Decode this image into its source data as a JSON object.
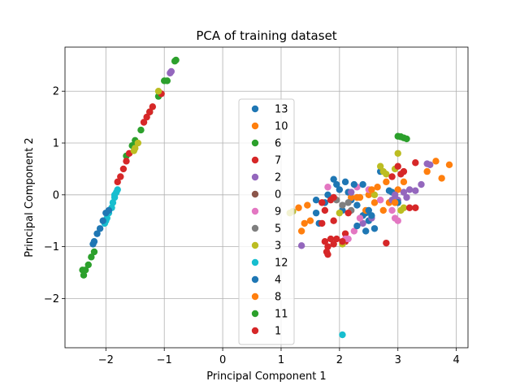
{
  "chart_data": {
    "type": "scatter",
    "title": "PCA of training dataset",
    "xlabel": "Principal Component 1",
    "ylabel": "Principal Component 2",
    "xlim": [
      -2.7,
      4.2
    ],
    "ylim": [
      -2.95,
      2.85
    ],
    "xticks": [
      -2,
      -1,
      0,
      1,
      2,
      3,
      4
    ],
    "yticks": [
      -2,
      -1,
      0,
      1,
      2
    ],
    "grid": true,
    "legend_position": "center",
    "series": [
      {
        "name": "13",
        "color": "#1f77b4",
        "points": [
          [
            1.9,
            0.3
          ],
          [
            1.95,
            0.2
          ],
          [
            2.0,
            0.1
          ],
          [
            2.1,
            0.25
          ],
          [
            2.15,
            0.05
          ],
          [
            1.8,
            0.0
          ],
          [
            1.75,
            -0.15
          ],
          [
            2.2,
            -0.1
          ],
          [
            2.3,
            -0.2
          ],
          [
            2.4,
            -0.4
          ],
          [
            2.5,
            -0.5
          ],
          [
            2.6,
            -0.65
          ],
          [
            1.6,
            -0.1
          ],
          [
            2.05,
            -0.3
          ],
          [
            2.9,
            0.05
          ],
          [
            2.7,
            0.45
          ],
          [
            1.65,
            -0.55
          ],
          [
            2.45,
            -0.35
          ]
        ]
      },
      {
        "name": "10",
        "color": "#ff7f0e",
        "points": [
          [
            2.2,
            -0.05
          ],
          [
            2.35,
            -0.05
          ],
          [
            2.5,
            0.0
          ],
          [
            2.65,
            0.15
          ],
          [
            2.8,
            0.25
          ],
          [
            2.6,
            -0.15
          ],
          [
            2.45,
            -0.3
          ],
          [
            1.4,
            -0.55
          ],
          [
            1.35,
            -0.7
          ],
          [
            1.3,
            -0.25
          ],
          [
            2.85,
            -0.15
          ],
          [
            3.1,
            0.25
          ],
          [
            3.0,
            0.1
          ],
          [
            2.75,
            -0.3
          ]
        ]
      },
      {
        "name": "6",
        "color": "#2ca02c",
        "points": [
          [
            3.05,
            1.12
          ],
          [
            3.1,
            1.1
          ],
          [
            3.15,
            1.08
          ],
          [
            3.0,
            1.13
          ]
        ]
      },
      {
        "name": "7",
        "color": "#d62728",
        "points": [
          [
            1.75,
            -0.9
          ],
          [
            1.8,
            -1.0
          ],
          [
            1.85,
            -0.85
          ],
          [
            1.9,
            -0.95
          ],
          [
            1.95,
            -0.85
          ],
          [
            1.78,
            -1.1
          ],
          [
            1.8,
            -1.15
          ],
          [
            2.1,
            -0.75
          ],
          [
            2.1,
            -0.9
          ],
          [
            1.7,
            -0.55
          ],
          [
            1.9,
            -0.5
          ],
          [
            2.8,
            -0.93
          ],
          [
            1.85,
            -0.1
          ],
          [
            1.75,
            -0.3
          ]
        ]
      },
      {
        "name": "2",
        "color": "#9467bd",
        "points": [
          [
            2.95,
            0.0
          ],
          [
            3.0,
            -0.1
          ],
          [
            3.1,
            0.05
          ],
          [
            3.2,
            0.1
          ],
          [
            3.3,
            0.08
          ],
          [
            2.9,
            -0.1
          ],
          [
            3.4,
            0.2
          ],
          [
            3.5,
            0.6
          ],
          [
            3.55,
            0.58
          ],
          [
            1.35,
            -0.98
          ],
          [
            2.4,
            -0.55
          ],
          [
            2.55,
            -0.45
          ],
          [
            2.2,
            0.05
          ],
          [
            3.15,
            -0.05
          ]
        ]
      },
      {
        "name": "0",
        "color": "#8c564b",
        "points": []
      },
      {
        "name": "9",
        "color": "#e377c2",
        "points": [
          [
            2.3,
            0.15
          ],
          [
            2.5,
            0.1
          ],
          [
            2.1,
            -0.85
          ],
          [
            2.25,
            -0.7
          ],
          [
            2.95,
            -0.45
          ],
          [
            3.0,
            -0.5
          ],
          [
            2.35,
            -0.45
          ],
          [
            2.7,
            -0.1
          ],
          [
            1.8,
            0.15
          ],
          [
            2.9,
            -0.3
          ],
          [
            2.15,
            -0.85
          ]
        ]
      },
      {
        "name": "5",
        "color": "#7f7f7f",
        "points": [
          [
            1.95,
            -0.1
          ],
          [
            2.05,
            -0.2
          ],
          [
            2.15,
            -0.15
          ],
          [
            2.2,
            -0.3
          ]
        ]
      },
      {
        "name": "3",
        "color": "#bcbd22",
        "points": [
          [
            2.7,
            0.55
          ],
          [
            2.75,
            0.45
          ],
          [
            2.8,
            0.4
          ],
          [
            2.95,
            0.5
          ],
          [
            3.0,
            0.8
          ],
          [
            3.05,
            -0.3
          ],
          [
            3.1,
            -0.25
          ],
          [
            2.6,
            0.0
          ],
          [
            2.0,
            -0.35
          ],
          [
            2.05,
            -0.95
          ],
          [
            1.15,
            -0.35
          ],
          [
            1.2,
            -0.32
          ]
        ]
      },
      {
        "name": "12",
        "color": "#17becf",
        "points": [
          [
            2.05,
            -2.7
          ]
        ]
      },
      {
        "name": "4",
        "color": "#1f77b4",
        "points": [
          [
            2.85,
            0.08
          ],
          [
            2.4,
            0.2
          ],
          [
            2.25,
            0.2
          ],
          [
            2.5,
            -0.3
          ],
          [
            2.55,
            -0.4
          ],
          [
            3.0,
            -0.15
          ],
          [
            1.6,
            -0.35
          ],
          [
            2.3,
            -0.6
          ],
          [
            2.45,
            -0.7
          ]
        ]
      },
      {
        "name": "8",
        "color": "#ff7f0e",
        "points": [
          [
            3.5,
            0.45
          ],
          [
            3.65,
            0.65
          ],
          [
            3.75,
            0.32
          ],
          [
            3.88,
            0.58
          ],
          [
            2.95,
            -0.15
          ],
          [
            2.55,
            0.1
          ],
          [
            1.45,
            -0.2
          ],
          [
            1.5,
            -0.5
          ],
          [
            2.3,
            -0.05
          ]
        ]
      },
      {
        "name": "11",
        "color": "#2ca02c",
        "points": [
          [
            -0.8,
            2.6
          ],
          [
            -0.82,
            2.58
          ],
          [
            -0.95,
            2.2
          ],
          [
            -1.0,
            2.2
          ],
          [
            -1.1,
            1.9
          ],
          [
            -1.25,
            1.6
          ],
          [
            -1.4,
            1.25
          ],
          [
            -1.5,
            1.05
          ],
          [
            -1.55,
            0.95
          ],
          [
            -1.65,
            0.75
          ],
          [
            -2.3,
            -1.35
          ],
          [
            -2.35,
            -1.45
          ],
          [
            -2.38,
            -1.55
          ],
          [
            -2.4,
            -1.45
          ],
          [
            -2.25,
            -1.2
          ],
          [
            -2.2,
            -1.1
          ],
          [
            3.05,
            1.12
          ]
        ]
      },
      {
        "name": "1",
        "color": "#d62728",
        "points": [
          [
            -1.05,
            1.95
          ],
          [
            -1.2,
            1.7
          ],
          [
            -1.25,
            1.6
          ],
          [
            -1.3,
            1.5
          ],
          [
            -1.35,
            1.4
          ],
          [
            -1.6,
            0.8
          ],
          [
            -1.65,
            0.65
          ],
          [
            -1.7,
            0.5
          ],
          [
            -1.75,
            0.35
          ],
          [
            -1.8,
            0.25
          ],
          [
            3.05,
            0.4
          ],
          [
            3.1,
            0.45
          ],
          [
            3.3,
            0.62
          ],
          [
            3.2,
            -0.25
          ],
          [
            3.3,
            -0.25
          ],
          [
            2.05,
            -0.9
          ],
          [
            2.15,
            -0.35
          ],
          [
            1.7,
            -0.15
          ],
          [
            1.9,
            -0.05
          ],
          [
            3.0,
            0.55
          ],
          [
            2.9,
            0.35
          ]
        ]
      },
      {
        "name": "12",
        "color": "#17becf",
        "points": [
          [
            -1.8,
            0.1
          ],
          [
            -1.82,
            0.05
          ],
          [
            -1.85,
            -0.05
          ],
          [
            -1.88,
            -0.15
          ],
          [
            -1.9,
            -0.25
          ],
          [
            -1.95,
            -0.35
          ],
          [
            -1.98,
            -0.45
          ],
          [
            -2.0,
            -0.5
          ],
          [
            -2.02,
            -0.55
          ],
          [
            -1.85,
            0.0
          ]
        ],
        "legend": false
      },
      {
        "name": "4",
        "color": "#1f77b4",
        "points": [
          [
            -2.0,
            -0.35
          ],
          [
            -2.05,
            -0.5
          ],
          [
            -2.1,
            -0.65
          ],
          [
            -2.15,
            -0.75
          ],
          [
            -2.2,
            -0.9
          ],
          [
            -2.22,
            -0.95
          ],
          [
            -1.95,
            -0.3
          ]
        ],
        "legend": false
      },
      {
        "name": "3",
        "color": "#bcbd22",
        "points": [
          [
            -1.45,
            1.0
          ],
          [
            -1.5,
            0.9
          ],
          [
            -1.52,
            0.85
          ],
          [
            -1.1,
            2.0
          ]
        ],
        "legend": false
      },
      {
        "name": "2",
        "color": "#9467bd",
        "points": [
          [
            -0.9,
            2.35
          ],
          [
            -0.88,
            2.38
          ]
        ],
        "legend": false
      }
    ],
    "legend_items": [
      {
        "name": "13",
        "color": "#1f77b4"
      },
      {
        "name": "10",
        "color": "#ff7f0e"
      },
      {
        "name": "6",
        "color": "#2ca02c"
      },
      {
        "name": "7",
        "color": "#d62728"
      },
      {
        "name": "2",
        "color": "#9467bd"
      },
      {
        "name": "0",
        "color": "#8c564b"
      },
      {
        "name": "9",
        "color": "#e377c2"
      },
      {
        "name": "5",
        "color": "#7f7f7f"
      },
      {
        "name": "3",
        "color": "#bcbd22"
      },
      {
        "name": "12",
        "color": "#17becf"
      },
      {
        "name": "4",
        "color": "#1f77b4"
      },
      {
        "name": "8",
        "color": "#ff7f0e"
      },
      {
        "name": "11",
        "color": "#2ca02c"
      },
      {
        "name": "1",
        "color": "#d62728"
      }
    ]
  }
}
